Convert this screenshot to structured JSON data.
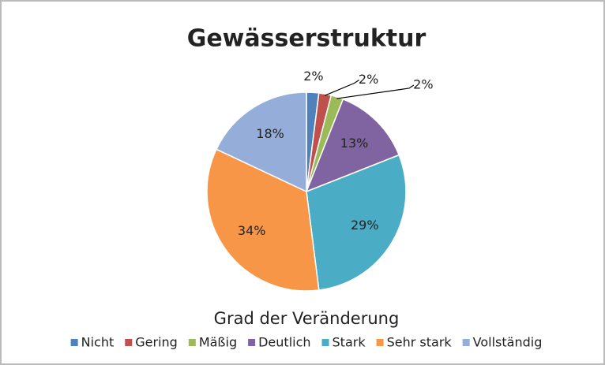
{
  "chart_data": {
    "type": "pie",
    "title": "Gewässerstruktur",
    "legend_title": "Grad der Veränderung",
    "categories": [
      "Nicht",
      "Gering",
      "Mäßig",
      "Deutlich",
      "Stark",
      "Sehr stark",
      "Vollständig"
    ],
    "values": [
      2,
      2,
      2,
      13,
      29,
      34,
      18
    ],
    "value_labels": [
      "2%",
      "2%",
      "2%",
      "13%",
      "29%",
      "34%",
      "18%"
    ],
    "colors": [
      "#4f81bd",
      "#c0504d",
      "#9bbb59",
      "#8064a2",
      "#4bacc6",
      "#f79646",
      "#95add9"
    ],
    "legend": "bottom"
  }
}
